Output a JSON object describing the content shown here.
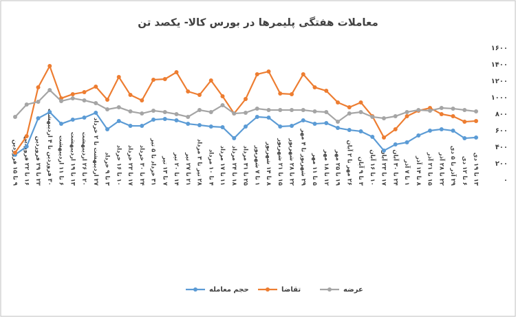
{
  "chart_data": {
    "type": "line",
    "title": "معاملات هفتگی پلیمرها در بورس کالا- یکصد تن",
    "categories": [
      "۹ تا ۱۵ فروردین",
      "۱۶ تا ۲۲ فروردین",
      "۲۳ تا ۲۹ فروردین",
      "۳۰ فروردین تا ۴ اردیبهشت",
      "۶ تا ۱۱ اردیبهشت",
      "۱۳ تا ۱۹ اردیبهشت",
      "۲۰ تا ۲۶ اردیبهشت",
      "۲۷ اردیبهشت تا ۲ خرداد",
      "۳ تا ۹ خرداد",
      "۱۰ تا ۱۶ خرداد",
      "۱۷ تا ۲۳ خرداد",
      "۲۴ تا ۳۰ خرداد",
      "۳۱ خرداد تا ۵ تیر",
      "۷ تا ۱۳ تیر",
      "۱۴ تا ۲۰ تیر",
      "۲۱ تا ۲۷ تیر",
      "۲۸ تیر تا ۳ مرداد",
      "۴ تا ۱۰ مرداد",
      "۱۱ تا ۱۷ مرداد",
      "۱۸ تا ۲۴ مرداد",
      "۲۵ تا ۳۱ مرداد",
      "۱ تا ۷ شهریور",
      "۸ تا ۱۴ شهریور",
      "۱۵ تا ۲۱ شهریور",
      "۲۲ تا ۲۸ شهریور",
      "۲۹ شهریور تا ۴ مهر",
      "۵ تا ۱۱ مهر",
      "۱۲ تا ۱۸ مهر",
      "۱۹ تا ۲۵ مهر",
      "۲۶ مهر تا ۲ آبان",
      "۳ تا ۹ آبان",
      "۱۰ تا ۱۶ آبان",
      "۱۷ تا ۲۳ آبان",
      "۲۴ تا ۳۰ آبان",
      "۱ تا ۷ آذر",
      "۸ تا ۱۴ آذر",
      "۱۵ تا ۲۱ آذر",
      "۲۲ تا ۲۸ آذر",
      "۲۹ آذر تا ۵ دی",
      "۶ تا ۱۲ دی",
      "۱۳ تا ۱۹ دی"
    ],
    "series": [
      {
        "name": "حجم معامله",
        "color": "#5b9bd5",
        "values": [
          308,
          408,
          750,
          825,
          683,
          733,
          758,
          817,
          617,
          717,
          658,
          658,
          733,
          742,
          725,
          683,
          667,
          650,
          642,
          508,
          650,
          767,
          758,
          650,
          658,
          725,
          683,
          692,
          633,
          608,
          592,
          525,
          358,
          433,
          458,
          542,
          600,
          617,
          600,
          508,
          517
        ]
      },
      {
        "name": "تقاضا",
        "color": "#ed7d31",
        "values": [
          333,
          533,
          1125,
          1383,
          992,
          1042,
          1067,
          1133,
          975,
          1250,
          1033,
          967,
          1217,
          1225,
          1308,
          1075,
          1033,
          1208,
          1017,
          808,
          983,
          1283,
          1317,
          1050,
          1042,
          1283,
          1125,
          1083,
          942,
          883,
          942,
          775,
          517,
          617,
          775,
          842,
          875,
          800,
          775,
          708,
          717
        ]
      },
      {
        "name": "عرضه",
        "color": "#a5a5a5",
        "values": [
          767,
          917,
          950,
          1092,
          958,
          992,
          967,
          933,
          858,
          883,
          833,
          808,
          842,
          825,
          800,
          767,
          850,
          825,
          908,
          808,
          817,
          867,
          850,
          850,
          850,
          850,
          833,
          825,
          708,
          808,
          825,
          767,
          750,
          775,
          825,
          850,
          842,
          875,
          867,
          850,
          833
        ]
      }
    ],
    "ylim": [
      0,
      1600
    ],
    "yticks": [
      {
        "value": 0,
        "label": "۰"
      },
      {
        "value": 200,
        "label": "۲۰۰"
      },
      {
        "value": 400,
        "label": "۴۰۰"
      },
      {
        "value": 600,
        "label": "۶۰۰"
      },
      {
        "value": 800,
        "label": "۸۰۰"
      },
      {
        "value": 1000,
        "label": "۱۰۰۰"
      },
      {
        "value": 1200,
        "label": "۱۲۰۰"
      },
      {
        "value": 1400,
        "label": "۱۴۰۰"
      },
      {
        "value": 1600,
        "label": "۱۶۰۰"
      }
    ],
    "grid": false
  }
}
